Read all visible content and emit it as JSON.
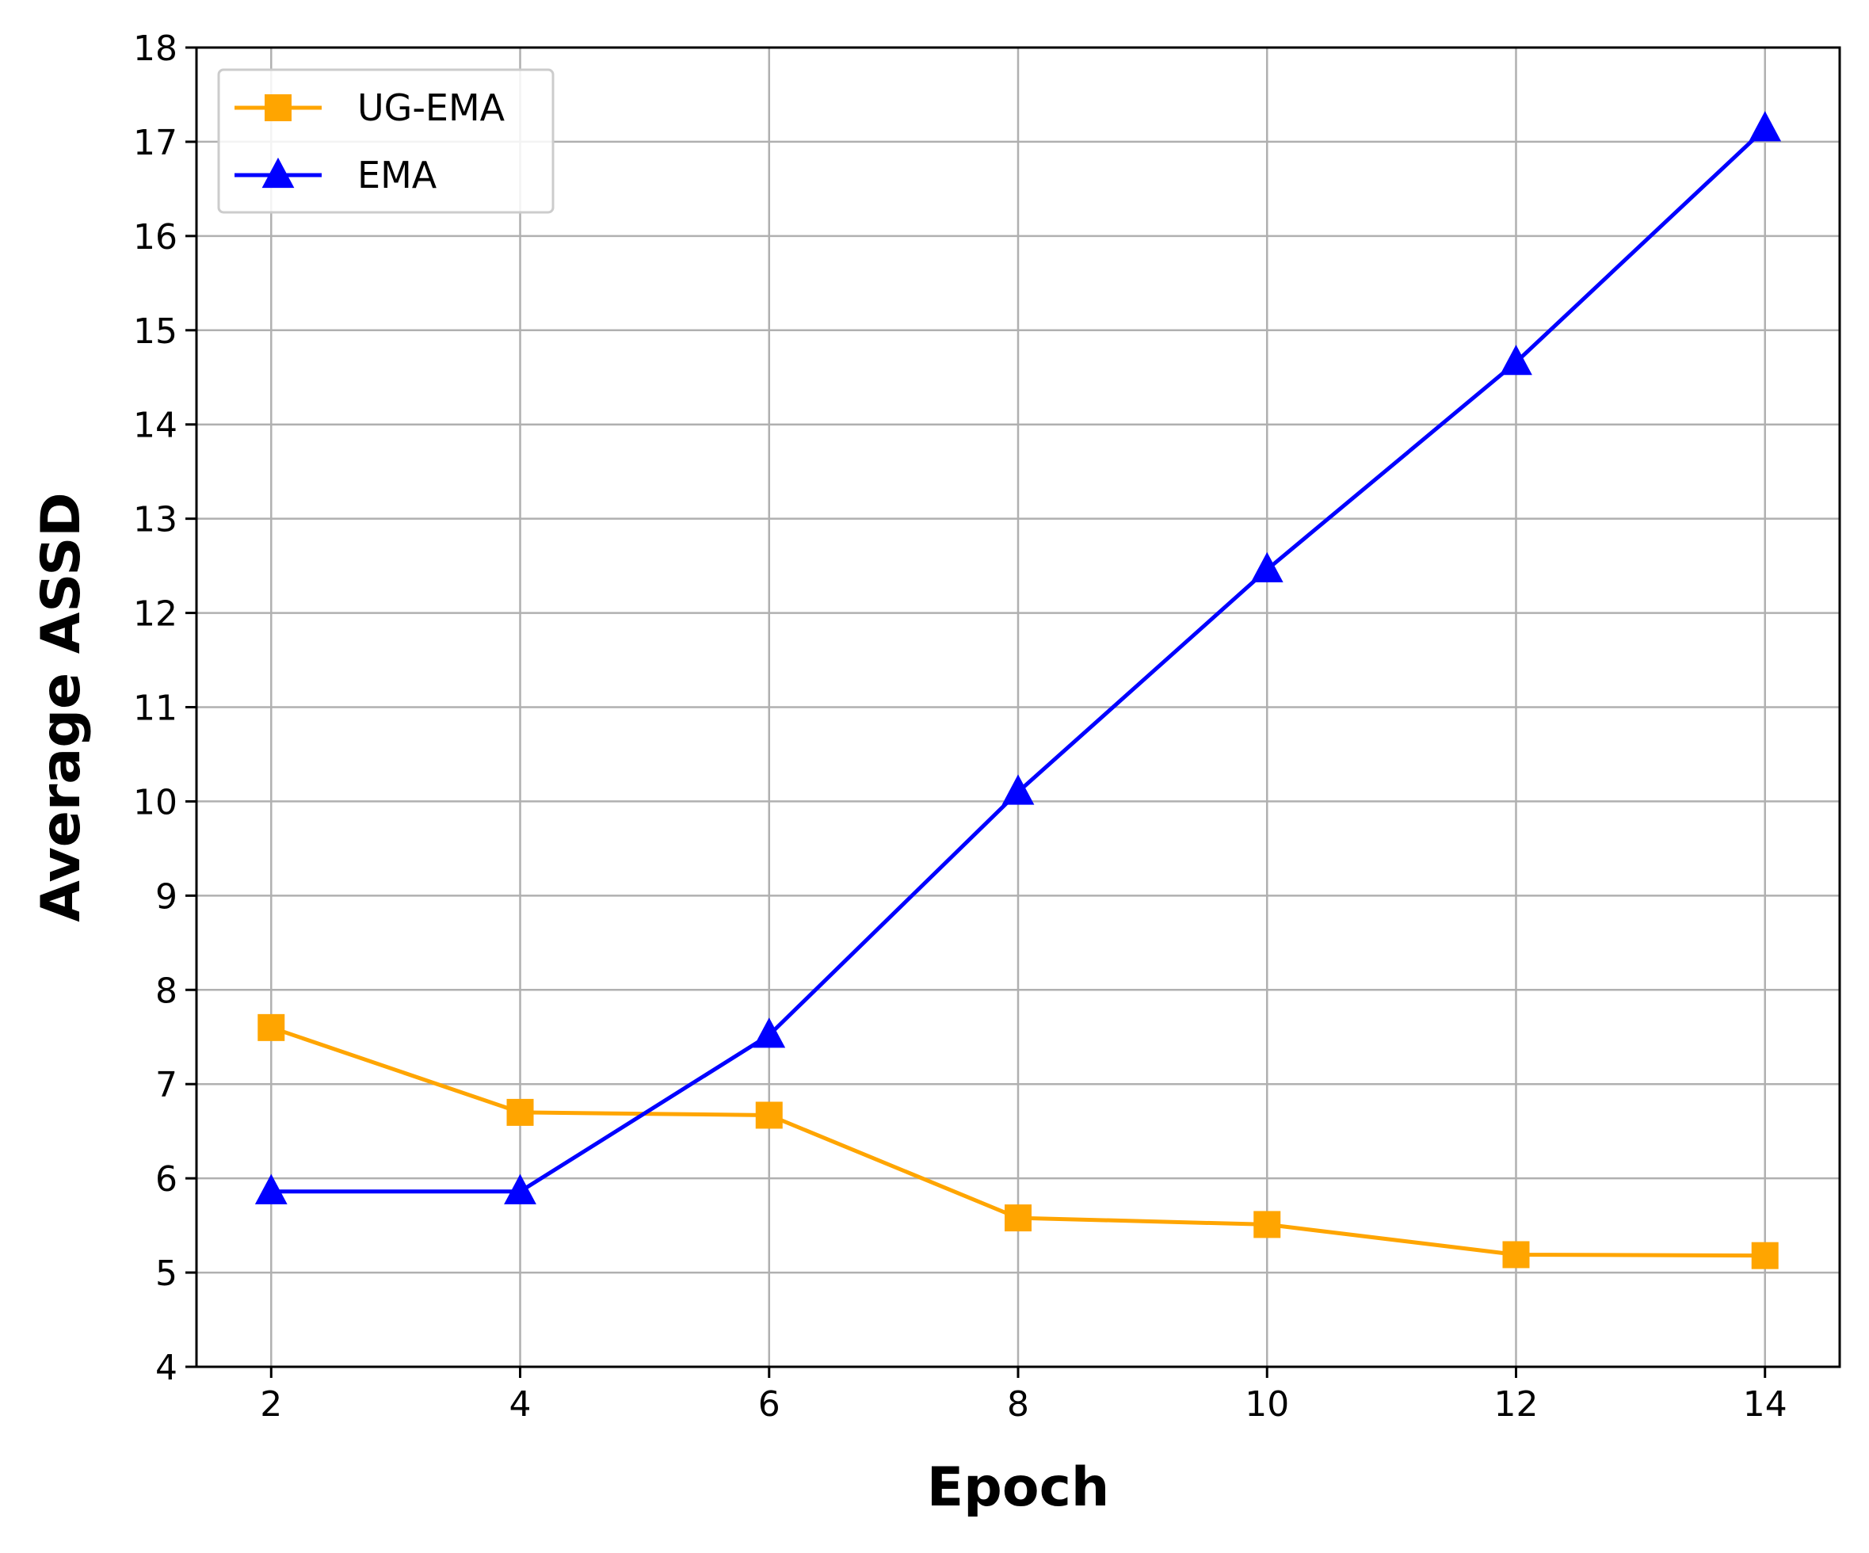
{
  "chart_data": {
    "type": "line",
    "xlabel": "Epoch",
    "ylabel": "Average ASSD",
    "x": [
      2,
      4,
      6,
      8,
      10,
      12,
      14
    ],
    "xlim": [
      1.4,
      14.6
    ],
    "ylim": [
      4,
      18
    ],
    "xticks": [
      "2",
      "4",
      "6",
      "8",
      "10",
      "12",
      "14"
    ],
    "yticks": [
      "4",
      "5",
      "6",
      "7",
      "8",
      "9",
      "10",
      "11",
      "12",
      "13",
      "14",
      "15",
      "16",
      "17",
      "18"
    ],
    "grid": true,
    "legend_position": "top-left",
    "series": [
      {
        "name": "UG-EMA",
        "color": "#FFA500",
        "marker": "square",
        "values": [
          7.6,
          6.7,
          6.67,
          5.58,
          5.51,
          5.19,
          5.18
        ]
      },
      {
        "name": "EMA",
        "color": "#0000FF",
        "marker": "triangle",
        "values": [
          5.86,
          5.86,
          7.52,
          10.1,
          12.46,
          14.66,
          17.14
        ]
      }
    ]
  }
}
